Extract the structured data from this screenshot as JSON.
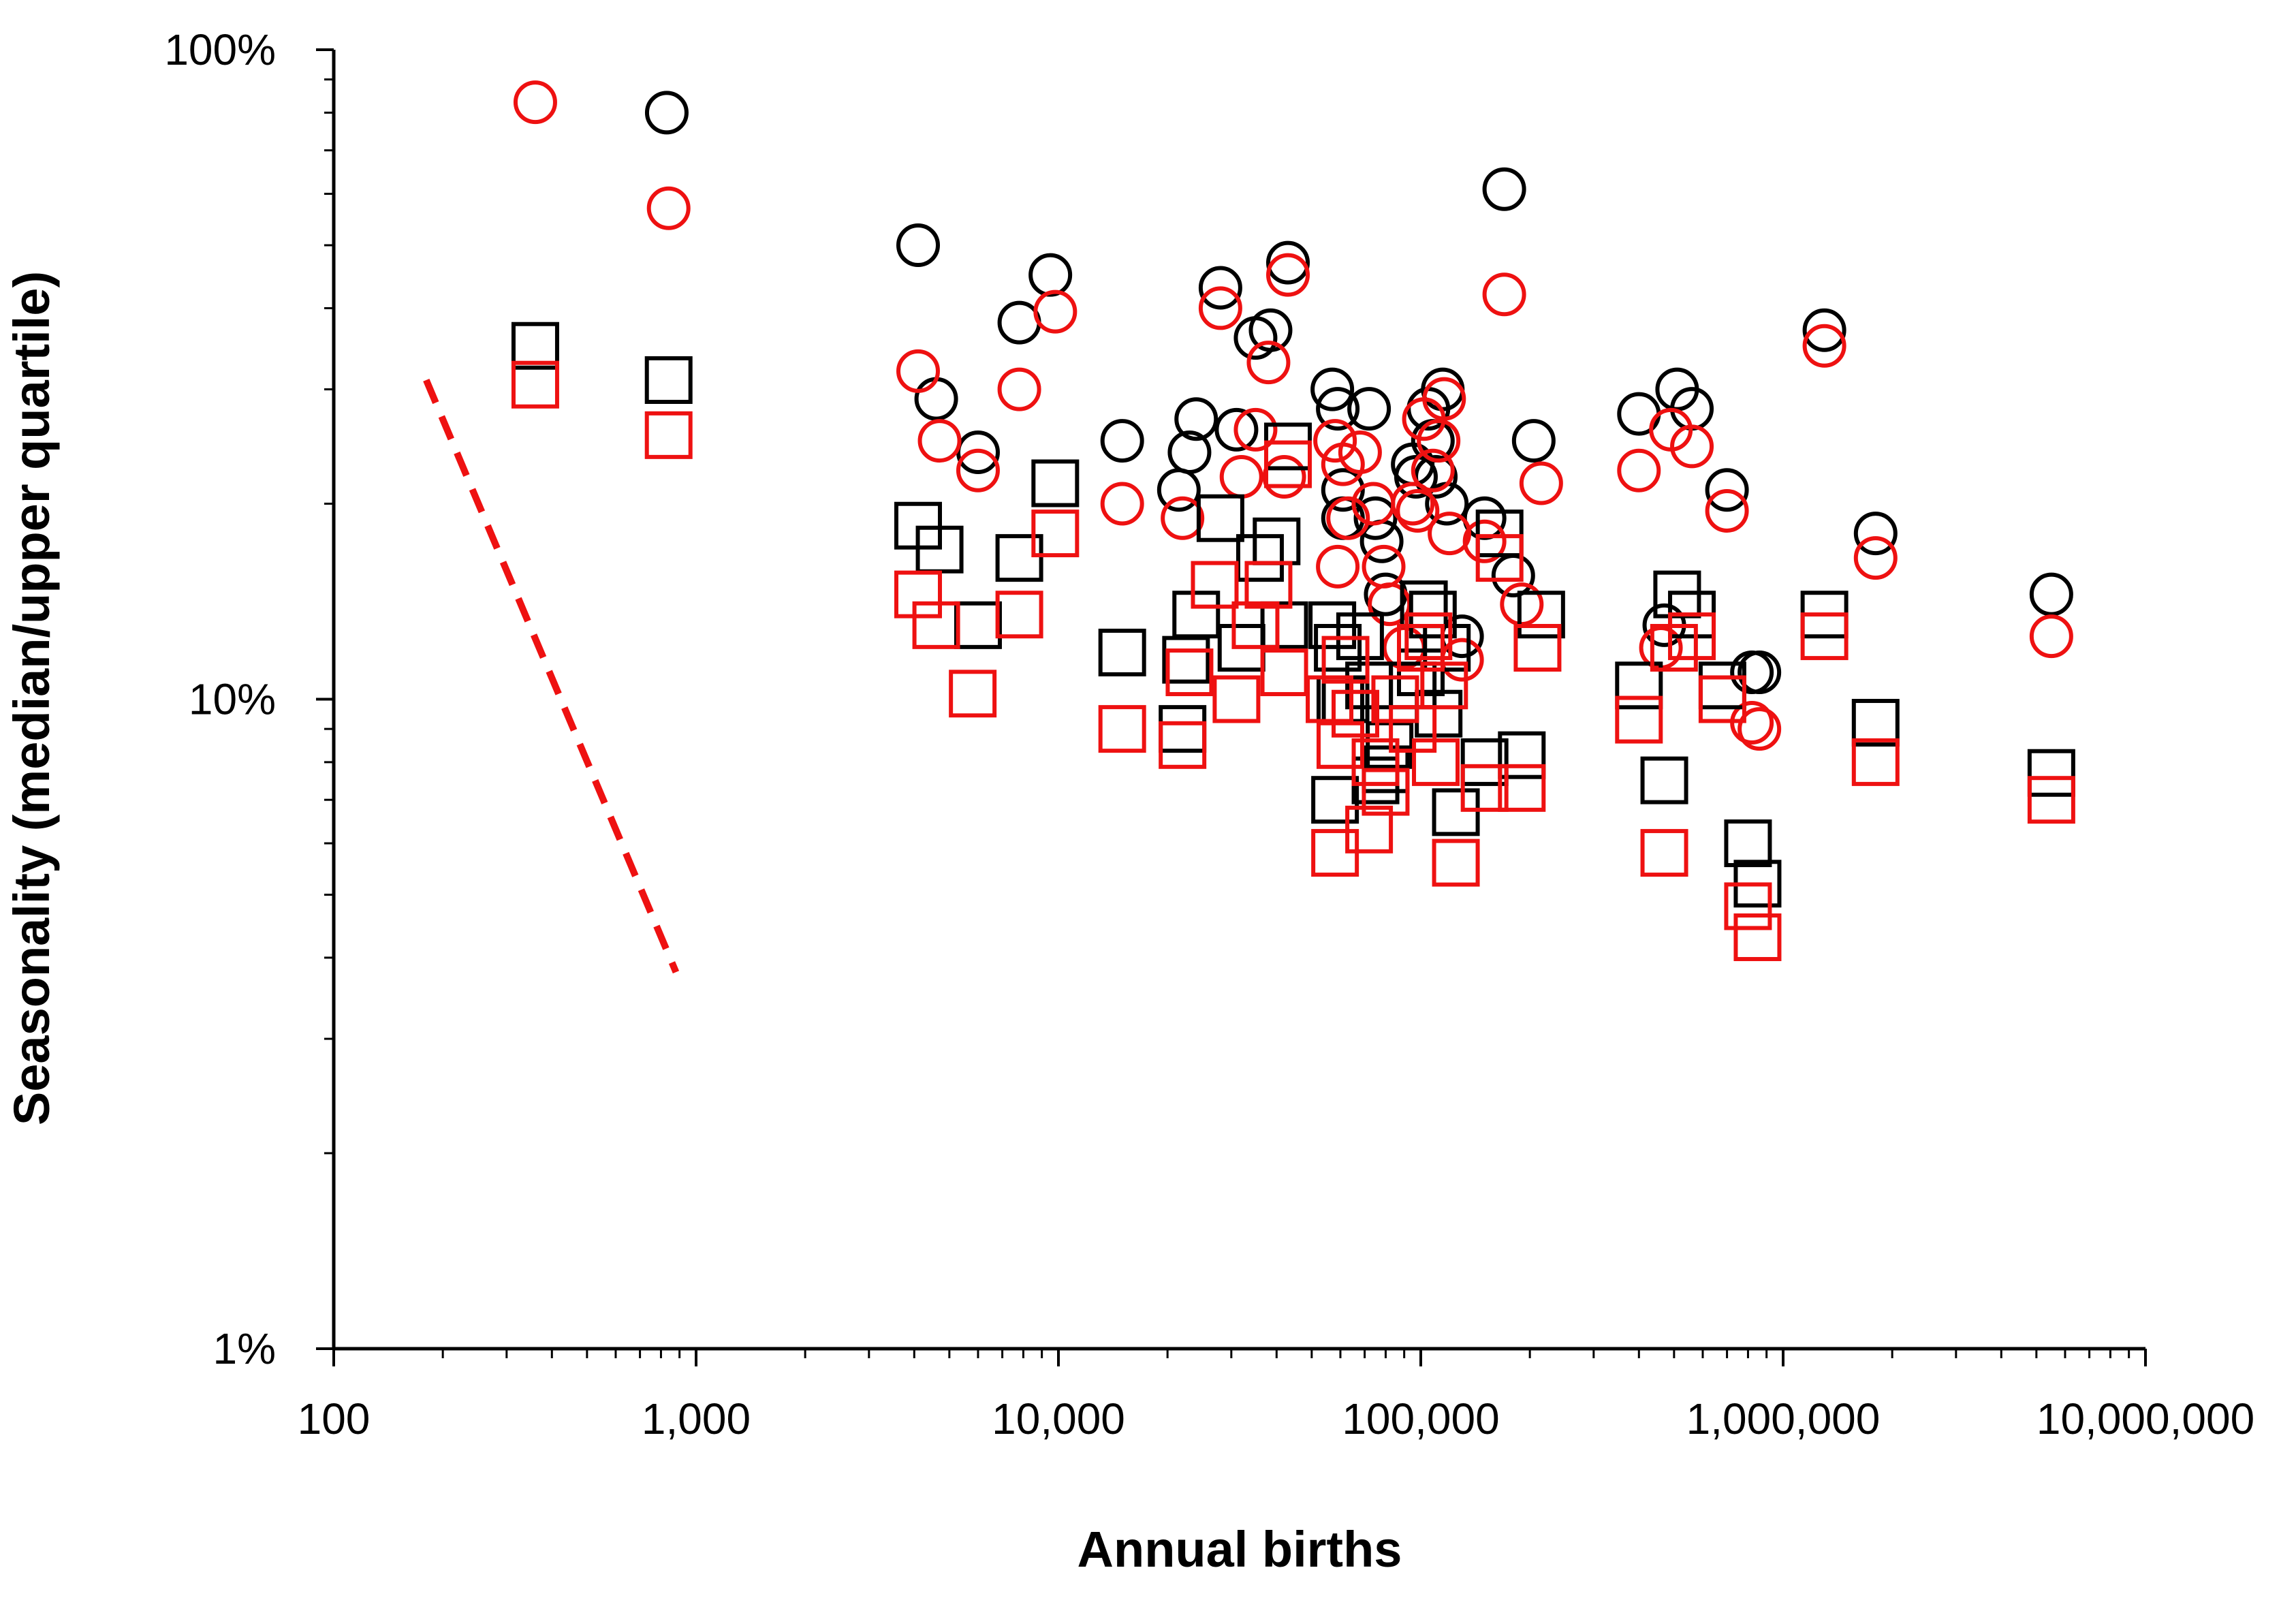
{
  "chart_data": {
    "type": "scatter",
    "xlabel": "Annual births",
    "ylabel": "Seasonality (median/upper quartile)",
    "x_scale": "log",
    "y_scale": "log",
    "xlim": [
      100,
      10000000
    ],
    "ylim": [
      1,
      100
    ],
    "x_ticks": [
      100,
      1000,
      10000,
      100000,
      1000000,
      10000000
    ],
    "x_tick_labels": [
      "100",
      "1,000",
      "10,000",
      "100,000",
      "1,000,000",
      "10,000,000"
    ],
    "y_ticks": [
      1,
      10,
      100
    ],
    "y_tick_labels": [
      "1%",
      "10%",
      "100%"
    ],
    "grid": false,
    "legend": "none",
    "colors": {
      "black": "#000000",
      "red": "#ee1111"
    },
    "series": [
      {
        "marker": "circle",
        "color": "#000000",
        "points": [
          [
            830,
            80
          ],
          [
            4100,
            50
          ],
          [
            4600,
            29
          ],
          [
            6000,
            24
          ],
          [
            7800,
            38
          ],
          [
            9500,
            45
          ],
          [
            15000,
            25
          ],
          [
            21500,
            21
          ],
          [
            23000,
            24
          ],
          [
            24000,
            27
          ],
          [
            28000,
            43
          ],
          [
            31000,
            26
          ],
          [
            35000,
            36
          ],
          [
            38500,
            37
          ],
          [
            43000,
            47
          ],
          [
            57000,
            30
          ],
          [
            59000,
            28
          ],
          [
            61000,
            21
          ],
          [
            61000,
            19
          ],
          [
            72000,
            28
          ],
          [
            75000,
            19
          ],
          [
            78000,
            17.5
          ],
          [
            80000,
            14.5
          ],
          [
            95000,
            23
          ],
          [
            97000,
            22
          ],
          [
            105000,
            28
          ],
          [
            108000,
            25
          ],
          [
            110000,
            22
          ],
          [
            115000,
            30
          ],
          [
            118000,
            20
          ],
          [
            130000,
            12.5
          ],
          [
            150000,
            19
          ],
          [
            170000,
            61
          ],
          [
            180000,
            15.5
          ],
          [
            205000,
            25
          ],
          [
            400000,
            27.5
          ],
          [
            470000,
            13
          ],
          [
            510000,
            30
          ],
          [
            560000,
            28
          ],
          [
            700000,
            21
          ],
          [
            820000,
            11
          ],
          [
            860000,
            11
          ],
          [
            1300000,
            37
          ],
          [
            1800000,
            18
          ],
          [
            5500000,
            14.5
          ]
        ]
      },
      {
        "marker": "circle",
        "color": "#ee1111",
        "points": [
          [
            360,
            83
          ],
          [
            840,
            57
          ],
          [
            4100,
            32
          ],
          [
            4700,
            25
          ],
          [
            6000,
            22.5
          ],
          [
            7800,
            30
          ],
          [
            9800,
            39.5
          ],
          [
            15000,
            20
          ],
          [
            22000,
            19
          ],
          [
            28000,
            40
          ],
          [
            32000,
            22
          ],
          [
            35000,
            26
          ],
          [
            38000,
            33
          ],
          [
            43000,
            45
          ],
          [
            42000,
            22
          ],
          [
            58000,
            25
          ],
          [
            59000,
            16
          ],
          [
            61000,
            23
          ],
          [
            63000,
            19
          ],
          [
            68000,
            24
          ],
          [
            74000,
            20
          ],
          [
            79000,
            16
          ],
          [
            82000,
            14
          ],
          [
            90000,
            12
          ],
          [
            95000,
            20
          ],
          [
            98000,
            19.5
          ],
          [
            102000,
            27
          ],
          [
            108000,
            22.5
          ],
          [
            112000,
            25
          ],
          [
            116000,
            29
          ],
          [
            120000,
            18
          ],
          [
            130000,
            11.5
          ],
          [
            150000,
            17.5
          ],
          [
            170000,
            42
          ],
          [
            190000,
            14
          ],
          [
            215000,
            21.5
          ],
          [
            400000,
            22.5
          ],
          [
            460000,
            12
          ],
          [
            490000,
            26
          ],
          [
            560000,
            24.5
          ],
          [
            700000,
            19.5
          ],
          [
            820000,
            9.2
          ],
          [
            860000,
            9
          ],
          [
            1300000,
            35
          ],
          [
            1800000,
            16.5
          ],
          [
            5500000,
            12.5
          ]
        ]
      },
      {
        "marker": "square",
        "color": "#000000",
        "points": [
          [
            360,
            35
          ],
          [
            840,
            31
          ],
          [
            4100,
            18.5
          ],
          [
            4700,
            17
          ],
          [
            6000,
            13
          ],
          [
            7800,
            16.5
          ],
          [
            9800,
            21.5
          ],
          [
            15000,
            11.8
          ],
          [
            22000,
            9
          ],
          [
            22500,
            11.5
          ],
          [
            24000,
            13.5
          ],
          [
            28000,
            19
          ],
          [
            32000,
            12
          ],
          [
            36000,
            16.5
          ],
          [
            40000,
            17.5
          ],
          [
            43000,
            24.5
          ],
          [
            42000,
            13
          ],
          [
            57000,
            13
          ],
          [
            59000,
            12
          ],
          [
            60000,
            10
          ],
          [
            58000,
            7
          ],
          [
            62000,
            10
          ],
          [
            68000,
            12.5
          ],
          [
            72000,
            10.5
          ],
          [
            75000,
            7.5
          ],
          [
            80000,
            7.8
          ],
          [
            82000,
            8.5
          ],
          [
            95000,
            10.5
          ],
          [
            100000,
            11
          ],
          [
            102000,
            14
          ],
          [
            108000,
            13.5
          ],
          [
            112000,
            9.5
          ],
          [
            118000,
            12
          ],
          [
            125000,
            6.7
          ],
          [
            150000,
            8
          ],
          [
            165000,
            18
          ],
          [
            190000,
            8.2
          ],
          [
            215000,
            13.5
          ],
          [
            400000,
            10.5
          ],
          [
            470000,
            7.5
          ],
          [
            510000,
            14.5
          ],
          [
            560000,
            13.5
          ],
          [
            680000,
            10.5
          ],
          [
            800000,
            6
          ],
          [
            850000,
            5.2
          ],
          [
            1300000,
            13.5
          ],
          [
            1800000,
            9.2
          ],
          [
            5500000,
            7.7
          ]
        ]
      },
      {
        "marker": "square",
        "color": "#ee1111",
        "points": [
          [
            360,
            30.5
          ],
          [
            840,
            25.5
          ],
          [
            4100,
            14.5
          ],
          [
            4600,
            13
          ],
          [
            5800,
            10.2
          ],
          [
            7800,
            13.5
          ],
          [
            9800,
            18
          ],
          [
            15000,
            9
          ],
          [
            22000,
            8.5
          ],
          [
            23000,
            11
          ],
          [
            27000,
            15
          ],
          [
            31000,
            10
          ],
          [
            35000,
            13
          ],
          [
            38000,
            15
          ],
          [
            42000,
            11
          ],
          [
            43000,
            23
          ],
          [
            56000,
            10
          ],
          [
            58000,
            5.8
          ],
          [
            60000,
            8.5
          ],
          [
            62000,
            11.5
          ],
          [
            66000,
            9.5
          ],
          [
            72000,
            6.3
          ],
          [
            75000,
            8
          ],
          [
            80000,
            7.2
          ],
          [
            85000,
            10
          ],
          [
            95000,
            9
          ],
          [
            100000,
            12
          ],
          [
            105000,
            12.5
          ],
          [
            110000,
            8
          ],
          [
            116000,
            10.5
          ],
          [
            125000,
            5.6
          ],
          [
            150000,
            7.3
          ],
          [
            165000,
            16.5
          ],
          [
            190000,
            7.3
          ],
          [
            210000,
            12
          ],
          [
            400000,
            9.3
          ],
          [
            470000,
            5.8
          ],
          [
            500000,
            12
          ],
          [
            560000,
            12.5
          ],
          [
            680000,
            10
          ],
          [
            800000,
            4.8
          ],
          [
            850000,
            4.3
          ],
          [
            1300000,
            12.5
          ],
          [
            1800000,
            8
          ],
          [
            5500000,
            7
          ]
        ]
      }
    ],
    "trendline": {
      "style": "dashed",
      "color": "#ee1111",
      "points": [
        [
          180,
          31
        ],
        [
          880,
          3.8
        ]
      ]
    }
  }
}
